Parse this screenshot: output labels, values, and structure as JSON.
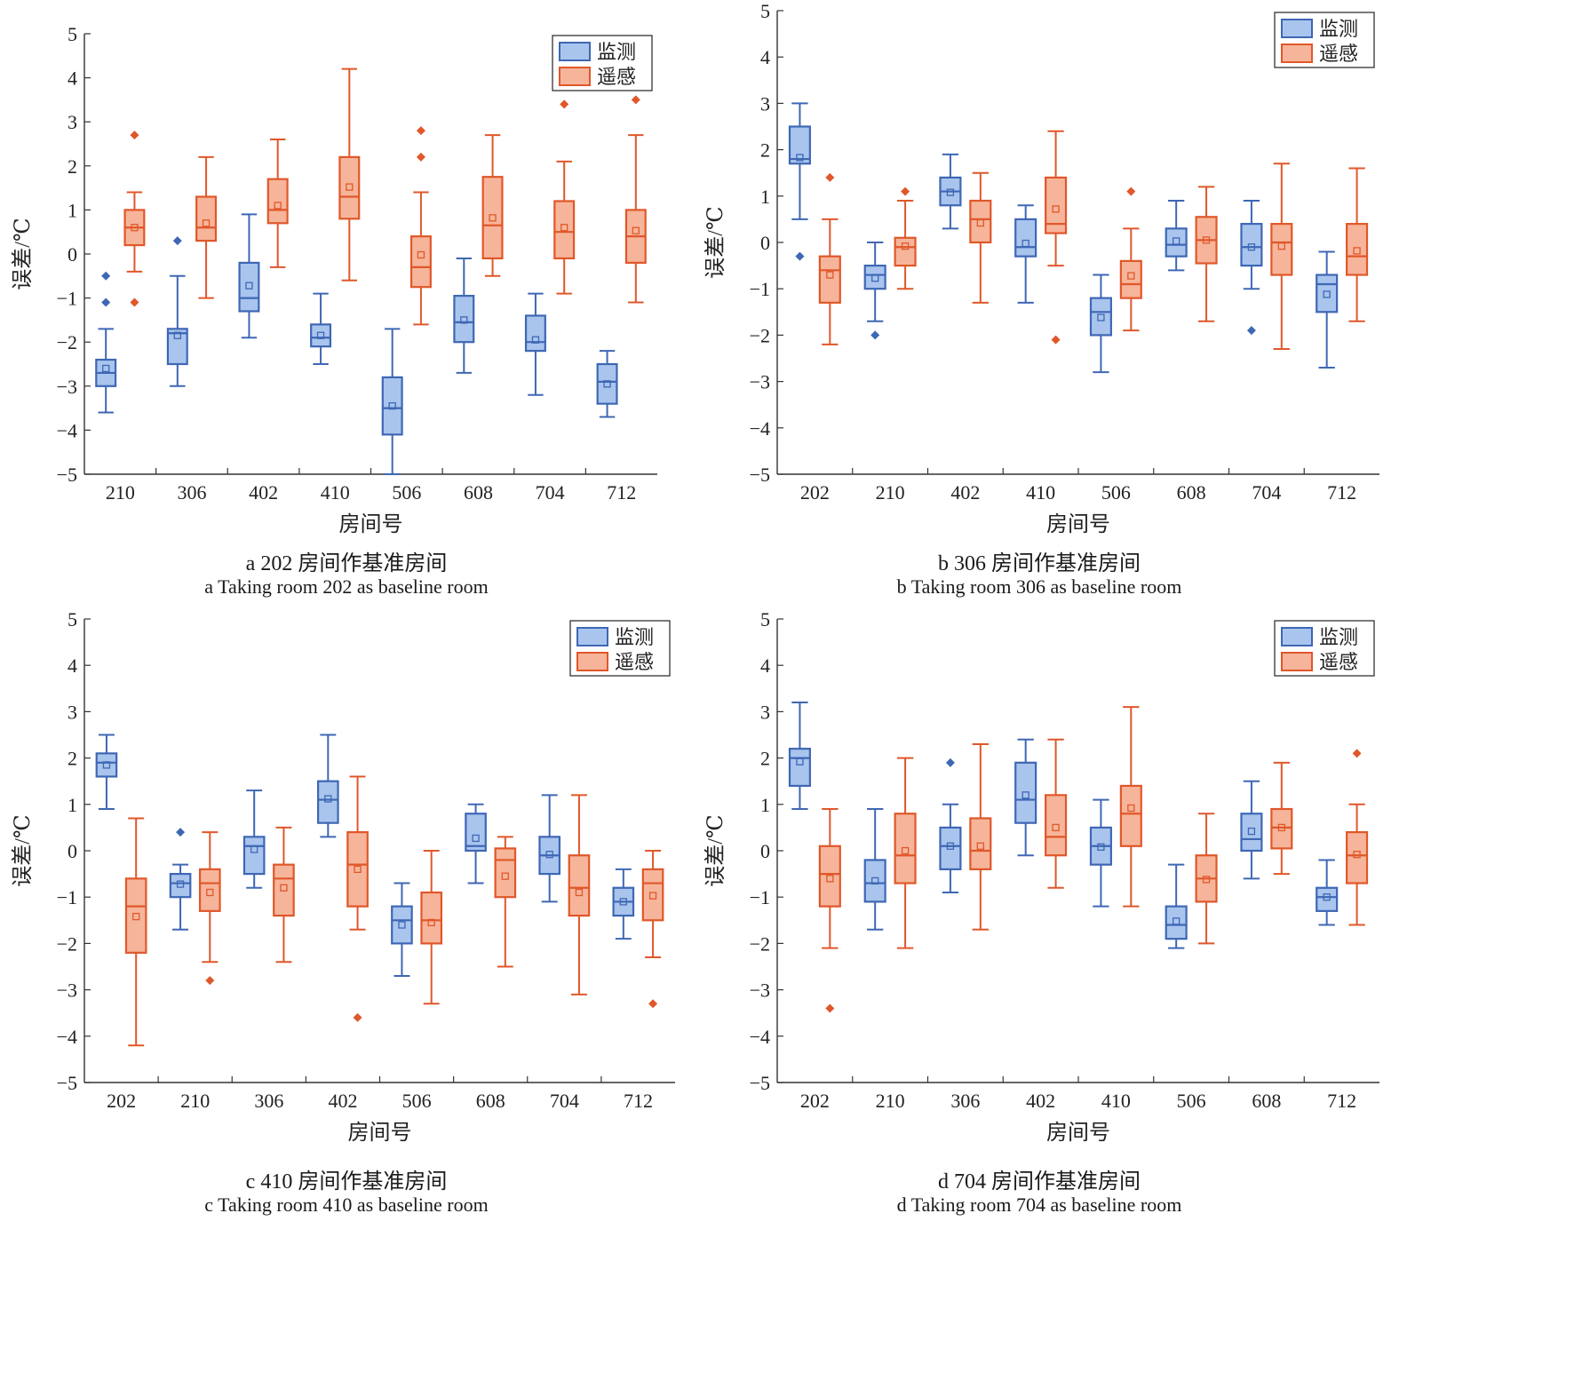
{
  "colors": {
    "monitor_stroke": "#3e67b4",
    "monitor_fill": "#a9c5ee",
    "sensing_stroke": "#e0572a",
    "sensing_fill": "#f6b59a",
    "axis": "#333333"
  },
  "chart_data": [
    {
      "type": "box",
      "panel": "a",
      "caption_zh": "a 202 房间作基准房间",
      "caption_en": "a Taking room 202 as baseline room",
      "xlabel": "房间号",
      "ylabel": "误差/℃",
      "ylim": [
        -5,
        5
      ],
      "yticks": [
        5,
        4,
        3,
        2,
        1,
        0,
        -1,
        -2,
        -3,
        -4,
        -5
      ],
      "categories": [
        "210",
        "306",
        "402",
        "410",
        "506",
        "608",
        "704",
        "712"
      ],
      "legend": {
        "placement": "top-right",
        "items": [
          "监测",
          "遥感"
        ]
      },
      "series": [
        {
          "name": "监测",
          "boxes": [
            {
              "min": -3.6,
              "q1": -3.0,
              "median": -2.7,
              "q3": -2.4,
              "max": -1.7,
              "mean": -2.6,
              "outliers": [
                -0.5,
                -1.1
              ]
            },
            {
              "min": -3.0,
              "q1": -2.5,
              "median": -1.8,
              "q3": -1.7,
              "max": -0.5,
              "mean": -1.85,
              "outliers": [
                0.3
              ]
            },
            {
              "min": -1.9,
              "q1": -1.3,
              "median": -1.0,
              "q3": -0.2,
              "max": 0.9,
              "mean": -0.72,
              "outliers": []
            },
            {
              "min": -2.5,
              "q1": -2.1,
              "median": -1.9,
              "q3": -1.6,
              "max": -0.9,
              "mean": -1.85,
              "outliers": []
            },
            {
              "min": -5.0,
              "q1": -4.1,
              "median": -3.5,
              "q3": -2.8,
              "max": -1.7,
              "mean": -3.45,
              "outliers": []
            },
            {
              "min": -2.7,
              "q1": -2.0,
              "median": -1.55,
              "q3": -0.95,
              "max": -0.1,
              "mean": -1.5,
              "outliers": []
            },
            {
              "min": -3.2,
              "q1": -2.2,
              "median": -2.0,
              "q3": -1.4,
              "max": -0.9,
              "mean": -1.95,
              "outliers": []
            },
            {
              "min": -3.7,
              "q1": -3.4,
              "median": -2.9,
              "q3": -2.5,
              "max": -2.2,
              "mean": -2.95,
              "outliers": []
            }
          ]
        },
        {
          "name": "遥感",
          "boxes": [
            {
              "min": -0.4,
              "q1": 0.2,
              "median": 0.6,
              "q3": 1.0,
              "max": 1.4,
              "mean": 0.6,
              "outliers": [
                2.7,
                -1.1
              ]
            },
            {
              "min": -1.0,
              "q1": 0.3,
              "median": 0.6,
              "q3": 1.3,
              "max": 2.2,
              "mean": 0.7,
              "outliers": []
            },
            {
              "min": -0.3,
              "q1": 0.7,
              "median": 1.0,
              "q3": 1.7,
              "max": 2.6,
              "mean": 1.1,
              "outliers": []
            },
            {
              "min": -0.6,
              "q1": 0.8,
              "median": 1.3,
              "q3": 2.2,
              "max": 4.2,
              "mean": 1.52,
              "outliers": []
            },
            {
              "min": -1.6,
              "q1": -0.75,
              "median": -0.3,
              "q3": 0.4,
              "max": 1.4,
              "mean": -0.02,
              "outliers": [
                2.8,
                2.2
              ]
            },
            {
              "min": -0.5,
              "q1": -0.1,
              "median": 0.65,
              "q3": 1.75,
              "max": 2.7,
              "mean": 0.82,
              "outliers": []
            },
            {
              "min": -0.9,
              "q1": -0.1,
              "median": 0.5,
              "q3": 1.2,
              "max": 2.1,
              "mean": 0.6,
              "outliers": [
                3.4
              ]
            },
            {
              "min": -1.1,
              "q1": -0.2,
              "median": 0.4,
              "q3": 1.0,
              "max": 2.7,
              "mean": 0.53,
              "outliers": [
                3.5
              ]
            }
          ]
        }
      ]
    },
    {
      "type": "box",
      "panel": "b",
      "caption_zh": "b 306 房间作基准房间",
      "caption_en": "b Taking room 306 as baseline room",
      "xlabel": "房间号",
      "ylabel": "误差/℃",
      "ylim": [
        -5,
        5
      ],
      "yticks": [
        5,
        4,
        3,
        2,
        1,
        0,
        -1,
        -2,
        -3,
        -4,
        -5
      ],
      "categories": [
        "202",
        "210",
        "402",
        "410",
        "506",
        "608",
        "704",
        "712"
      ],
      "legend": {
        "placement": "top-right",
        "items": [
          "监测",
          "遥感"
        ]
      },
      "series": [
        {
          "name": "监测",
          "boxes": [
            {
              "min": 0.5,
              "q1": 1.7,
              "median": 1.8,
              "q3": 2.5,
              "max": 3.0,
              "mean": 1.83,
              "outliers": [
                -0.3
              ]
            },
            {
              "min": -1.7,
              "q1": -1.0,
              "median": -0.7,
              "q3": -0.5,
              "max": 0.0,
              "mean": -0.77,
              "outliers": [
                -2.0
              ]
            },
            {
              "min": 0.3,
              "q1": 0.8,
              "median": 1.1,
              "q3": 1.4,
              "max": 1.9,
              "mean": 1.08,
              "outliers": []
            },
            {
              "min": -1.3,
              "q1": -0.3,
              "median": -0.1,
              "q3": 0.5,
              "max": 0.8,
              "mean": -0.02,
              "outliers": []
            },
            {
              "min": -2.8,
              "q1": -2.0,
              "median": -1.5,
              "q3": -1.2,
              "max": -0.7,
              "mean": -1.62,
              "outliers": []
            },
            {
              "min": -0.6,
              "q1": -0.3,
              "median": -0.05,
              "q3": 0.3,
              "max": 0.9,
              "mean": 0.03,
              "outliers": []
            },
            {
              "min": -1.0,
              "q1": -0.5,
              "median": -0.1,
              "q3": 0.4,
              "max": 0.9,
              "mean": -0.1,
              "outliers": [
                -1.9
              ]
            },
            {
              "min": -2.7,
              "q1": -1.5,
              "median": -0.9,
              "q3": -0.7,
              "max": -0.2,
              "mean": -1.12,
              "outliers": []
            }
          ]
        },
        {
          "name": "遥感",
          "boxes": [
            {
              "min": -2.2,
              "q1": -1.3,
              "median": -0.6,
              "q3": -0.3,
              "max": 0.5,
              "mean": -0.7,
              "outliers": [
                1.4
              ]
            },
            {
              "min": -1.0,
              "q1": -0.5,
              "median": -0.1,
              "q3": 0.1,
              "max": 0.9,
              "mean": -0.08,
              "outliers": [
                1.1
              ]
            },
            {
              "min": -1.3,
              "q1": 0.0,
              "median": 0.5,
              "q3": 0.9,
              "max": 1.5,
              "mean": 0.42,
              "outliers": []
            },
            {
              "min": -0.5,
              "q1": 0.2,
              "median": 0.4,
              "q3": 1.4,
              "max": 2.4,
              "mean": 0.72,
              "outliers": [
                -2.1
              ]
            },
            {
              "min": -1.9,
              "q1": -1.2,
              "median": -0.9,
              "q3": -0.4,
              "max": 0.3,
              "mean": -0.72,
              "outliers": [
                1.1
              ]
            },
            {
              "min": -1.7,
              "q1": -0.45,
              "median": 0.05,
              "q3": 0.55,
              "max": 1.2,
              "mean": 0.05,
              "outliers": []
            },
            {
              "min": -2.3,
              "q1": -0.7,
              "median": 0.0,
              "q3": 0.4,
              "max": 1.7,
              "mean": -0.08,
              "outliers": []
            },
            {
              "min": -1.7,
              "q1": -0.7,
              "median": -0.3,
              "q3": 0.4,
              "max": 1.6,
              "mean": -0.18,
              "outliers": []
            }
          ]
        }
      ]
    },
    {
      "type": "box",
      "panel": "c",
      "caption_zh": "c 410 房间作基准房间",
      "caption_en": "c Taking room 410 as baseline room",
      "xlabel": "房间号",
      "ylabel": "误差/℃",
      "ylim": [
        -5,
        5
      ],
      "yticks": [
        5,
        4,
        3,
        2,
        1,
        0,
        -1,
        -2,
        -3,
        -4,
        -5
      ],
      "categories": [
        "202",
        "210",
        "306",
        "402",
        "506",
        "608",
        "704",
        "712"
      ],
      "legend": {
        "placement": "top-right",
        "items": [
          "监测",
          "遥感"
        ]
      },
      "series": [
        {
          "name": "监测",
          "boxes": [
            {
              "min": 0.9,
              "q1": 1.6,
              "median": 1.9,
              "q3": 2.1,
              "max": 2.5,
              "mean": 1.85,
              "outliers": []
            },
            {
              "min": -1.7,
              "q1": -1.0,
              "median": -0.7,
              "q3": -0.5,
              "max": -0.3,
              "mean": -0.72,
              "outliers": [
                0.4
              ]
            },
            {
              "min": -0.8,
              "q1": -0.5,
              "median": 0.1,
              "q3": 0.3,
              "max": 1.3,
              "mean": 0.03,
              "outliers": []
            },
            {
              "min": 0.3,
              "q1": 0.6,
              "median": 1.1,
              "q3": 1.5,
              "max": 2.5,
              "mean": 1.12,
              "outliers": []
            },
            {
              "min": -2.7,
              "q1": -2.0,
              "median": -1.5,
              "q3": -1.2,
              "max": -0.7,
              "mean": -1.6,
              "outliers": []
            },
            {
              "min": -0.7,
              "q1": 0.0,
              "median": 0.1,
              "q3": 0.8,
              "max": 1.0,
              "mean": 0.27,
              "outliers": []
            },
            {
              "min": -1.1,
              "q1": -0.5,
              "median": -0.1,
              "q3": 0.3,
              "max": 1.2,
              "mean": -0.08,
              "outliers": []
            },
            {
              "min": -1.9,
              "q1": -1.4,
              "median": -1.1,
              "q3": -0.8,
              "max": -0.4,
              "mean": -1.1,
              "outliers": []
            }
          ]
        },
        {
          "name": "遥感",
          "boxes": [
            {
              "min": -4.2,
              "q1": -2.2,
              "median": -1.2,
              "q3": -0.6,
              "max": 0.7,
              "mean": -1.42,
              "outliers": []
            },
            {
              "min": -2.4,
              "q1": -1.3,
              "median": -0.7,
              "q3": -0.4,
              "max": 0.4,
              "mean": -0.9,
              "outliers": [
                -2.8
              ]
            },
            {
              "min": -2.4,
              "q1": -1.4,
              "median": -0.6,
              "q3": -0.3,
              "max": 0.5,
              "mean": -0.8,
              "outliers": []
            },
            {
              "min": -1.7,
              "q1": -1.2,
              "median": -0.3,
              "q3": 0.4,
              "max": 1.6,
              "mean": -0.4,
              "outliers": [
                -3.6
              ]
            },
            {
              "min": -3.3,
              "q1": -2.0,
              "median": -1.5,
              "q3": -0.9,
              "max": 0.0,
              "mean": -1.55,
              "outliers": []
            },
            {
              "min": -2.5,
              "q1": -1.0,
              "median": -0.2,
              "q3": 0.05,
              "max": 0.3,
              "mean": -0.55,
              "outliers": []
            },
            {
              "min": -3.1,
              "q1": -1.4,
              "median": -0.8,
              "q3": -0.1,
              "max": 1.2,
              "mean": -0.9,
              "outliers": []
            },
            {
              "min": -2.3,
              "q1": -1.5,
              "median": -0.7,
              "q3": -0.4,
              "max": 0.0,
              "mean": -0.97,
              "outliers": [
                -3.3
              ]
            }
          ]
        }
      ]
    },
    {
      "type": "box",
      "panel": "d",
      "caption_zh": "d 704 房间作基准房间",
      "caption_en": "d Taking room 704 as baseline room",
      "xlabel": "房间号",
      "ylabel": "误差/℃",
      "ylim": [
        -5,
        5
      ],
      "yticks": [
        5,
        4,
        3,
        2,
        1,
        0,
        -1,
        -2,
        -3,
        -4,
        -5
      ],
      "categories": [
        "202",
        "210",
        "306",
        "402",
        "410",
        "506",
        "608",
        "712"
      ],
      "legend": {
        "placement": "top-right",
        "items": [
          "监测",
          "遥感"
        ]
      },
      "series": [
        {
          "name": "监测",
          "boxes": [
            {
              "min": 0.9,
              "q1": 1.4,
              "median": 2.0,
              "q3": 2.2,
              "max": 3.2,
              "mean": 1.92,
              "outliers": []
            },
            {
              "min": -1.7,
              "q1": -1.1,
              "median": -0.7,
              "q3": -0.2,
              "max": 0.9,
              "mean": -0.65,
              "outliers": []
            },
            {
              "min": -0.9,
              "q1": -0.4,
              "median": 0.1,
              "q3": 0.5,
              "max": 1.0,
              "mean": 0.1,
              "outliers": [
                1.9
              ]
            },
            {
              "min": -0.1,
              "q1": 0.6,
              "median": 1.1,
              "q3": 1.9,
              "max": 2.4,
              "mean": 1.2,
              "outliers": []
            },
            {
              "min": -1.2,
              "q1": -0.3,
              "median": 0.1,
              "q3": 0.5,
              "max": 1.1,
              "mean": 0.08,
              "outliers": []
            },
            {
              "min": -2.1,
              "q1": -1.9,
              "median": -1.6,
              "q3": -1.2,
              "max": -0.3,
              "mean": -1.52,
              "outliers": []
            },
            {
              "min": -0.6,
              "q1": 0.0,
              "median": 0.25,
              "q3": 0.8,
              "max": 1.5,
              "mean": 0.42,
              "outliers": []
            },
            {
              "min": -1.6,
              "q1": -1.3,
              "median": -1.0,
              "q3": -0.8,
              "max": -0.2,
              "mean": -1.0,
              "outliers": []
            }
          ]
        },
        {
          "name": "遥感",
          "boxes": [
            {
              "min": -2.1,
              "q1": -1.2,
              "median": -0.5,
              "q3": 0.1,
              "max": 0.9,
              "mean": -0.6,
              "outliers": [
                -3.4
              ]
            },
            {
              "min": -2.1,
              "q1": -0.7,
              "median": -0.1,
              "q3": 0.8,
              "max": 2.0,
              "mean": 0.0,
              "outliers": []
            },
            {
              "min": -1.7,
              "q1": -0.4,
              "median": 0.0,
              "q3": 0.7,
              "max": 2.3,
              "mean": 0.1,
              "outliers": []
            },
            {
              "min": -0.8,
              "q1": -0.1,
              "median": 0.3,
              "q3": 1.2,
              "max": 2.4,
              "mean": 0.5,
              "outliers": []
            },
            {
              "min": -1.2,
              "q1": 0.1,
              "median": 0.8,
              "q3": 1.4,
              "max": 3.1,
              "mean": 0.92,
              "outliers": []
            },
            {
              "min": -2.0,
              "q1": -1.1,
              "median": -0.6,
              "q3": -0.1,
              "max": 0.8,
              "mean": -0.62,
              "outliers": []
            },
            {
              "min": -0.5,
              "q1": 0.05,
              "median": 0.5,
              "q3": 0.9,
              "max": 1.9,
              "mean": 0.5,
              "outliers": []
            },
            {
              "min": -1.6,
              "q1": -0.7,
              "median": -0.1,
              "q3": 0.4,
              "max": 1.0,
              "mean": -0.08,
              "outliers": [
                2.1
              ]
            }
          ]
        }
      ]
    }
  ]
}
